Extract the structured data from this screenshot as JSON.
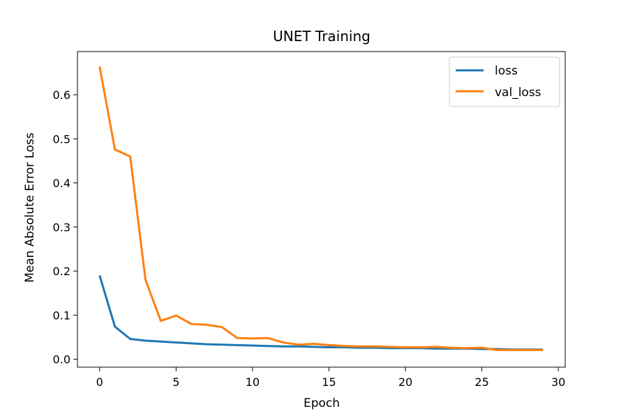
{
  "chart_data": {
    "type": "line",
    "title": "UNET Training",
    "xlabel": "Epoch",
    "ylabel": "Mean Absolute Error Loss",
    "xlim": [
      -1.45,
      30.45
    ],
    "ylim": [
      -0.018,
      0.698
    ],
    "xticks": [
      0,
      5,
      10,
      15,
      20,
      25,
      30
    ],
    "yticks": [
      0.0,
      0.1,
      0.2,
      0.3,
      0.4,
      0.5,
      0.6
    ],
    "ytick_labels": [
      "0.0",
      "0.1",
      "0.2",
      "0.3",
      "0.4",
      "0.5",
      "0.6"
    ],
    "grid": false,
    "legend_position": "top-right",
    "x": [
      0,
      1,
      2,
      3,
      4,
      5,
      6,
      7,
      8,
      9,
      10,
      11,
      12,
      13,
      14,
      15,
      16,
      17,
      18,
      19,
      20,
      21,
      22,
      23,
      24,
      25,
      26,
      27,
      28,
      29
    ],
    "series": [
      {
        "name": "loss",
        "color": "#1f77b4",
        "values": [
          0.19,
          0.074,
          0.046,
          0.042,
          0.04,
          0.038,
          0.036,
          0.034,
          0.033,
          0.032,
          0.031,
          0.03,
          0.029,
          0.029,
          0.028,
          0.027,
          0.027,
          0.026,
          0.026,
          0.025,
          0.025,
          0.025,
          0.024,
          0.024,
          0.024,
          0.023,
          0.023,
          0.022,
          0.022,
          0.022
        ]
      },
      {
        "name": "val_loss",
        "color": "#ff7f0e",
        "values": [
          0.664,
          0.476,
          0.46,
          0.18,
          0.087,
          0.099,
          0.08,
          0.078,
          0.073,
          0.048,
          0.047,
          0.048,
          0.038,
          0.033,
          0.035,
          0.032,
          0.03,
          0.029,
          0.029,
          0.028,
          0.027,
          0.027,
          0.028,
          0.026,
          0.025,
          0.026,
          0.021,
          0.021,
          0.021,
          0.021
        ]
      }
    ]
  }
}
